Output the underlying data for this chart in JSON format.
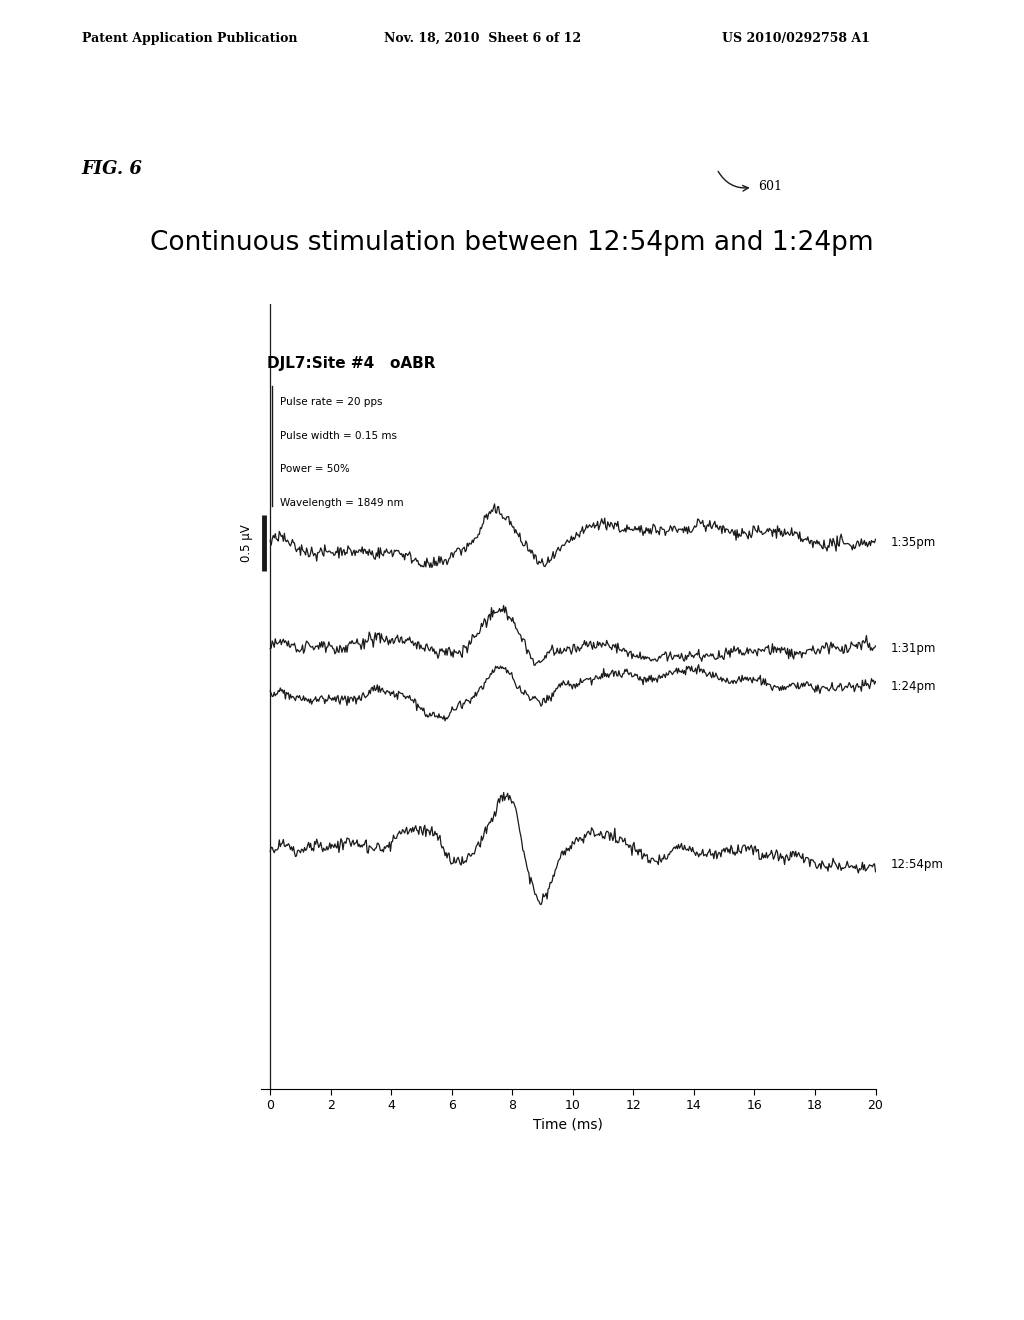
{
  "title": "Continuous stimulation between 12:54pm and 1:24pm",
  "fig_label": "FIG. 6",
  "fig_number": "601",
  "patent_header_left": "Patent Application Publication",
  "patent_header_mid": "Nov. 18, 2010  Sheet 6 of 12",
  "patent_header_right": "US 2010/0292758 A1",
  "plot_title": "DJL7:Site #4   oABR",
  "params": [
    "Pulse rate = 20 pps",
    "Pulse width = 0.15 ms",
    "Power = 50%",
    "Wavelength = 1849 nm"
  ],
  "xlabel": "Time (ms)",
  "ylabel": "0.5 μV",
  "xticks": [
    0,
    2,
    4,
    6,
    8,
    10,
    12,
    14,
    16,
    18,
    20
  ],
  "xlim": [
    0,
    20
  ],
  "background_color": "#ffffff",
  "line_color": "#1a1a1a"
}
